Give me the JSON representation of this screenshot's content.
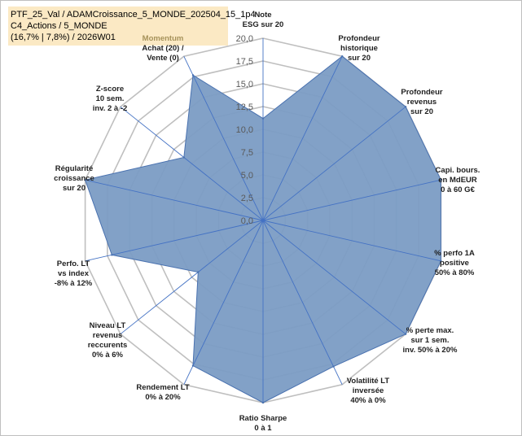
{
  "chart_data": {
    "type": "radar",
    "title_lines": [
      "PTF_25_Val / ADAMCroissance_5_MONDE_202504_15_1p4",
      "C4_Actions / 5_MONDE",
      "(16,7% | 7,8%) / 2026W01"
    ],
    "rlim": [
      0,
      20
    ],
    "ticks": [
      "0,0",
      "2,5",
      "5,0",
      "7,5",
      "10,0",
      "12,5",
      "15,0",
      "17,5",
      "20,0"
    ],
    "axes": [
      {
        "label": [
          "Note",
          "ESG sur 20"
        ],
        "value": 11.2
      },
      {
        "label": [
          "Profondeur",
          "historique",
          "sur 20"
        ],
        "value": 20
      },
      {
        "label": [
          "Profondeur",
          "revenus",
          "sur 20"
        ],
        "value": 20
      },
      {
        "label": [
          "Capi. bours.",
          "en MdEUR",
          "0 à 60 G€"
        ],
        "value": 20
      },
      {
        "label": [
          "% perfo 1A",
          "positive",
          "50% à 80%"
        ],
        "value": 20
      },
      {
        "label": [
          "% perte max.",
          "sur 1 sem.",
          "inv. 50% à 20%"
        ],
        "value": 20
      },
      {
        "label": [
          "Volatilité LT",
          "inversée",
          "40% à 0%"
        ],
        "value": 17.8
      },
      {
        "label": [
          "Ratio Sharpe",
          "0 à 1"
        ],
        "value": 20
      },
      {
        "label": [
          "Rendement LT",
          "0% à 20%"
        ],
        "value": 17.7
      },
      {
        "label": [
          "Niveau LT",
          "revenus",
          "reccurents",
          "0% à 6%"
        ],
        "value": 9.1
      },
      {
        "label": [
          "Perfo. LT",
          "vs index",
          "-8% à 12%"
        ],
        "value": 17.0
      },
      {
        "label": [
          "Régularité",
          "croissance",
          "sur 20"
        ],
        "value": 20
      },
      {
        "label": [
          "Z-score",
          "10 sem.",
          "inv. 2 à -2"
        ],
        "value": 11.1
      },
      {
        "label": [
          "Momentum",
          "Achat (20) /",
          "Vente (0)"
        ],
        "value": 17.7
      }
    ],
    "highlight_label_color": "#a6925a",
    "fill_color": "#7b9cc4",
    "line_color": "#4a72b0",
    "grid_color": "#bfbfbf",
    "spoke_color": "#4472c4"
  }
}
